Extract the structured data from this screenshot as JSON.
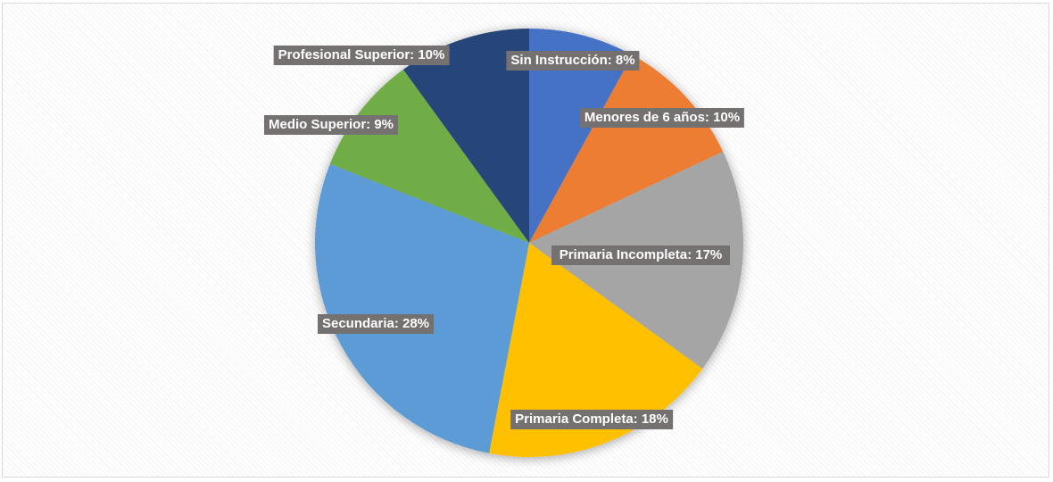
{
  "chart_data": {
    "type": "pie",
    "values": [
      8,
      10,
      17,
      18,
      28,
      9,
      10
    ],
    "value_labels": [
      "Sin Instrucción: 8%",
      "Menores de 6 años: 10%",
      "Primaria Incompleta: 17%",
      "Primaria Completa: 18%",
      "Secundaria: 28%",
      "Medio Superior: 9%",
      "Profesional Superior: 10%"
    ],
    "colors": [
      "#4472c4",
      "#ed7d31",
      "#a5a5a5",
      "#ffc000",
      "#5b9bd5",
      "#70ad47",
      "#264478"
    ]
  }
}
